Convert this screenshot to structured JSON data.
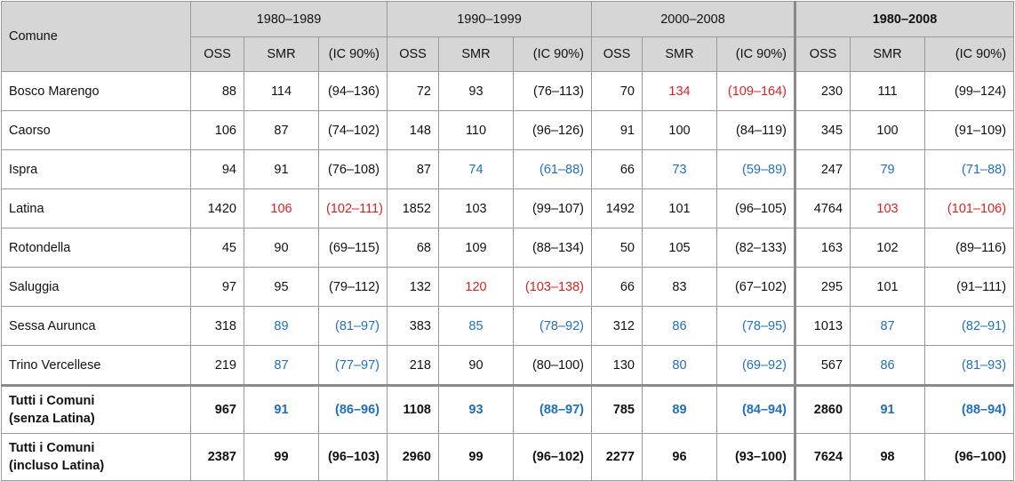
{
  "header": {
    "comune": "Comune",
    "periods": [
      "1980–1989",
      "1990–1999",
      "2000–2008",
      "1980–2008"
    ],
    "sub": [
      "OSS",
      "SMR",
      "(IC 90%)"
    ]
  },
  "rows": [
    {
      "name": [
        "Bosco Marengo"
      ],
      "cells": [
        {
          "v": "88",
          "c": ""
        },
        {
          "v": "114",
          "c": ""
        },
        {
          "v": "(94–136)",
          "c": ""
        },
        {
          "v": "72",
          "c": ""
        },
        {
          "v": "93",
          "c": ""
        },
        {
          "v": "(76–113)",
          "c": ""
        },
        {
          "v": "70",
          "c": ""
        },
        {
          "v": "134",
          "c": "red"
        },
        {
          "v": "(109–164)",
          "c": "red"
        },
        {
          "v": "230",
          "c": ""
        },
        {
          "v": "111",
          "c": ""
        },
        {
          "v": "(99–124)",
          "c": ""
        }
      ]
    },
    {
      "name": [
        "Caorso"
      ],
      "cells": [
        {
          "v": "106",
          "c": ""
        },
        {
          "v": "87",
          "c": ""
        },
        {
          "v": "(74–102)",
          "c": ""
        },
        {
          "v": "148",
          "c": ""
        },
        {
          "v": "110",
          "c": ""
        },
        {
          "v": "(96–126)",
          "c": ""
        },
        {
          "v": "91",
          "c": ""
        },
        {
          "v": "100",
          "c": ""
        },
        {
          "v": "(84–119)",
          "c": ""
        },
        {
          "v": "345",
          "c": ""
        },
        {
          "v": "100",
          "c": ""
        },
        {
          "v": "(91–109)",
          "c": ""
        }
      ]
    },
    {
      "name": [
        "Ispra"
      ],
      "cells": [
        {
          "v": "94",
          "c": ""
        },
        {
          "v": "91",
          "c": ""
        },
        {
          "v": "(76–108)",
          "c": ""
        },
        {
          "v": "87",
          "c": ""
        },
        {
          "v": "74",
          "c": "blue"
        },
        {
          "v": "(61–88)",
          "c": "blue"
        },
        {
          "v": "66",
          "c": ""
        },
        {
          "v": "73",
          "c": "blue"
        },
        {
          "v": "(59–89)",
          "c": "blue"
        },
        {
          "v": "247",
          "c": ""
        },
        {
          "v": "79",
          "c": "blue"
        },
        {
          "v": "(71–88)",
          "c": "blue"
        }
      ]
    },
    {
      "name": [
        "Latina"
      ],
      "cells": [
        {
          "v": "1420",
          "c": ""
        },
        {
          "v": "106",
          "c": "red"
        },
        {
          "v": "(102–111)",
          "c": "red"
        },
        {
          "v": "1852",
          "c": ""
        },
        {
          "v": "103",
          "c": ""
        },
        {
          "v": "(99–107)",
          "c": ""
        },
        {
          "v": "1492",
          "c": ""
        },
        {
          "v": "101",
          "c": ""
        },
        {
          "v": "(96–105)",
          "c": ""
        },
        {
          "v": "4764",
          "c": ""
        },
        {
          "v": "103",
          "c": "red"
        },
        {
          "v": "(101–106)",
          "c": "red"
        }
      ]
    },
    {
      "name": [
        "Rotondella"
      ],
      "cells": [
        {
          "v": "45",
          "c": ""
        },
        {
          "v": "90",
          "c": ""
        },
        {
          "v": "(69–115)",
          "c": ""
        },
        {
          "v": "68",
          "c": ""
        },
        {
          "v": "109",
          "c": ""
        },
        {
          "v": "(88–134)",
          "c": ""
        },
        {
          "v": "50",
          "c": ""
        },
        {
          "v": "105",
          "c": ""
        },
        {
          "v": "(82–133)",
          "c": ""
        },
        {
          "v": "163",
          "c": ""
        },
        {
          "v": "102",
          "c": ""
        },
        {
          "v": "(89–116)",
          "c": ""
        }
      ]
    },
    {
      "name": [
        "Saluggia"
      ],
      "cells": [
        {
          "v": "97",
          "c": ""
        },
        {
          "v": "95",
          "c": ""
        },
        {
          "v": "(79–112)",
          "c": ""
        },
        {
          "v": "132",
          "c": ""
        },
        {
          "v": "120",
          "c": "red"
        },
        {
          "v": "(103–138)",
          "c": "red"
        },
        {
          "v": "66",
          "c": ""
        },
        {
          "v": "83",
          "c": ""
        },
        {
          "v": "(67–102)",
          "c": ""
        },
        {
          "v": "295",
          "c": ""
        },
        {
          "v": "101",
          "c": ""
        },
        {
          "v": "(91–111)",
          "c": ""
        }
      ]
    },
    {
      "name": [
        "Sessa Aurunca"
      ],
      "cells": [
        {
          "v": "318",
          "c": ""
        },
        {
          "v": "89",
          "c": "blue"
        },
        {
          "v": "(81–97)",
          "c": "blue"
        },
        {
          "v": "383",
          "c": ""
        },
        {
          "v": "85",
          "c": "blue"
        },
        {
          "v": "(78–92)",
          "c": "blue"
        },
        {
          "v": "312",
          "c": ""
        },
        {
          "v": "86",
          "c": "blue"
        },
        {
          "v": "(78–95)",
          "c": "blue"
        },
        {
          "v": "1013",
          "c": ""
        },
        {
          "v": "87",
          "c": "blue"
        },
        {
          "v": "(82–91)",
          "c": "blue"
        }
      ]
    },
    {
      "name": [
        "Trino Vercellese"
      ],
      "cells": [
        {
          "v": "219",
          "c": ""
        },
        {
          "v": "87",
          "c": "blue"
        },
        {
          "v": "(77–97)",
          "c": "blue"
        },
        {
          "v": "218",
          "c": ""
        },
        {
          "v": "90",
          "c": ""
        },
        {
          "v": "(80–100)",
          "c": ""
        },
        {
          "v": "130",
          "c": ""
        },
        {
          "v": "80",
          "c": "blue"
        },
        {
          "v": "(69–92)",
          "c": "blue"
        },
        {
          "v": "567",
          "c": ""
        },
        {
          "v": "86",
          "c": "blue"
        },
        {
          "v": "(81–93)",
          "c": "blue"
        }
      ]
    }
  ],
  "totals": [
    {
      "name": [
        "Tutti i Comuni",
        "(senza Latina)"
      ],
      "cells": [
        {
          "v": "967",
          "c": ""
        },
        {
          "v": "91",
          "c": "blue"
        },
        {
          "v": "(86–96)",
          "c": "blue"
        },
        {
          "v": "1108",
          "c": ""
        },
        {
          "v": "93",
          "c": "blue"
        },
        {
          "v": "(88–97)",
          "c": "blue"
        },
        {
          "v": "785",
          "c": ""
        },
        {
          "v": "89",
          "c": "blue"
        },
        {
          "v": "(84–94)",
          "c": "blue"
        },
        {
          "v": "2860",
          "c": ""
        },
        {
          "v": "91",
          "c": "blue"
        },
        {
          "v": "(88–94)",
          "c": "blue"
        }
      ]
    },
    {
      "name": [
        "Tutti i Comuni",
        "(incluso Latina)"
      ],
      "cells": [
        {
          "v": "2387",
          "c": ""
        },
        {
          "v": "99",
          "c": ""
        },
        {
          "v": "(96–103)",
          "c": ""
        },
        {
          "v": "2960",
          "c": ""
        },
        {
          "v": "99",
          "c": ""
        },
        {
          "v": "(96–102)",
          "c": ""
        },
        {
          "v": "2277",
          "c": ""
        },
        {
          "v": "96",
          "c": ""
        },
        {
          "v": "(93–100)",
          "c": ""
        },
        {
          "v": "7624",
          "c": ""
        },
        {
          "v": "98",
          "c": ""
        },
        {
          "v": "(96–100)",
          "c": ""
        }
      ]
    }
  ],
  "colors": {
    "red": "#e02020",
    "blue": "#1f6fbf",
    "header_bg": "#d6d6d6"
  }
}
